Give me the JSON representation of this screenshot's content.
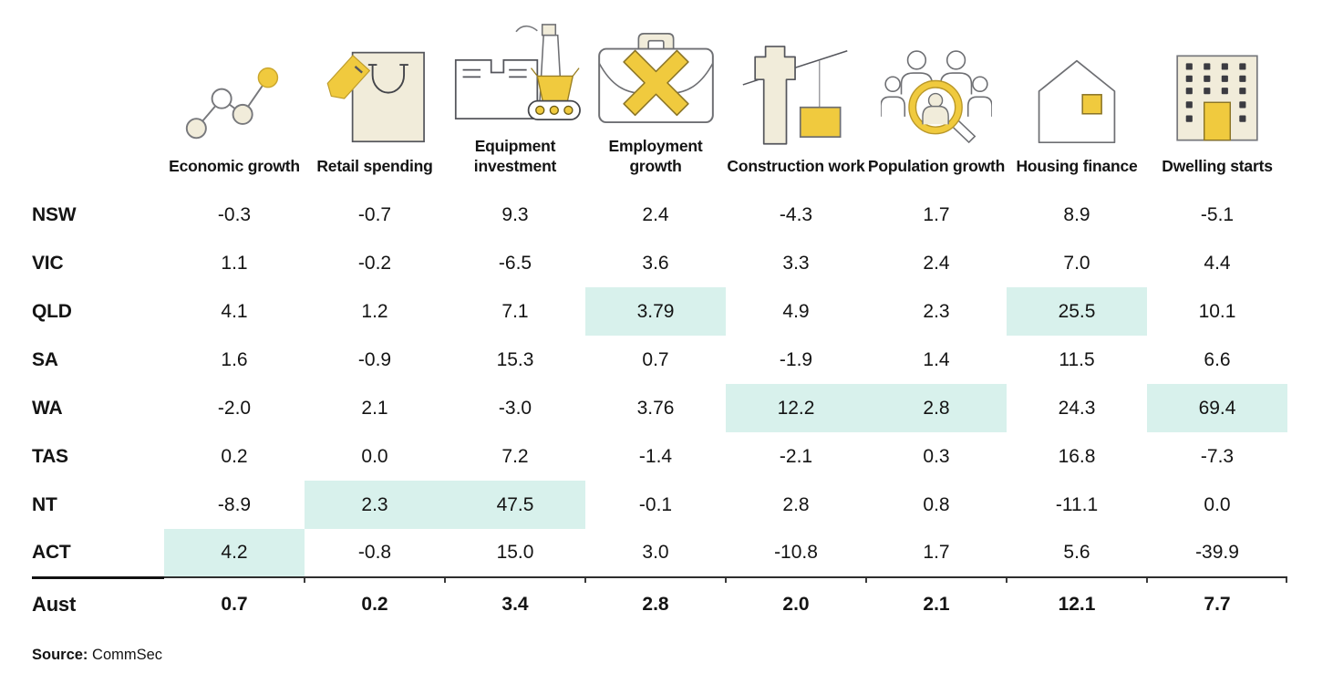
{
  "columns": [
    {
      "label": "Economic growth",
      "icon": "line-chart-growth-icon"
    },
    {
      "label": "Retail spending",
      "icon": "shopping-bag-tag-icon"
    },
    {
      "label": "Equipment investment",
      "icon": "factory-conveyor-icon"
    },
    {
      "label": "Employment growth",
      "icon": "briefcase-x-icon"
    },
    {
      "label": "Construction work",
      "icon": "crane-icon"
    },
    {
      "label": "Population growth",
      "icon": "people-magnifier-icon"
    },
    {
      "label": "Housing finance",
      "icon": "house-window-icon"
    },
    {
      "label": "Dwelling starts",
      "icon": "apartment-building-icon"
    }
  ],
  "rows": [
    {
      "label": "NSW",
      "values": [
        "-0.3",
        "-0.7",
        "9.3",
        "2.4",
        "-4.3",
        "1.7",
        "8.9",
        "-5.1"
      ],
      "highlighted": []
    },
    {
      "label": "VIC",
      "values": [
        "1.1",
        "-0.2",
        "-6.5",
        "3.6",
        "3.3",
        "2.4",
        "7.0",
        "4.4"
      ],
      "highlighted": []
    },
    {
      "label": "QLD",
      "values": [
        "4.1",
        "1.2",
        "7.1",
        "3.79",
        "4.9",
        "2.3",
        "25.5",
        "10.1"
      ],
      "highlighted": [
        3,
        6
      ]
    },
    {
      "label": "SA",
      "values": [
        "1.6",
        "-0.9",
        "15.3",
        "0.7",
        "-1.9",
        "1.4",
        "11.5",
        "6.6"
      ],
      "highlighted": []
    },
    {
      "label": "WA",
      "values": [
        "-2.0",
        "2.1",
        "-3.0",
        "3.76",
        "12.2",
        "2.8",
        "24.3",
        "69.4"
      ],
      "highlighted": [
        4,
        5,
        7
      ]
    },
    {
      "label": "TAS",
      "values": [
        "0.2",
        "0.0",
        "7.2",
        "-1.4",
        "-2.1",
        "0.3",
        "16.8",
        "-7.3"
      ],
      "highlighted": []
    },
    {
      "label": "NT",
      "values": [
        "-8.9",
        "2.3",
        "47.5",
        "-0.1",
        "2.8",
        "0.8",
        "-11.1",
        "0.0"
      ],
      "highlighted": [
        1,
        2
      ]
    },
    {
      "label": "ACT",
      "values": [
        "4.2",
        "-0.8",
        "15.0",
        "3.0",
        "-10.8",
        "1.7",
        "5.6",
        "-39.9"
      ],
      "highlighted": [
        0
      ]
    }
  ],
  "total_row": {
    "label": "Aust",
    "values": [
      "0.7",
      "0.2",
      "3.4",
      "2.8",
      "2.0",
      "2.1",
      "12.1",
      "7.7"
    ]
  },
  "source": {
    "label": "Source:",
    "value": " CommSec"
  },
  "colors": {
    "highlight_mint": "#d8f1ec",
    "accent_yellow": "#f0ca3e",
    "icon_cream": "#f1ecda",
    "icon_outline_gray": "#6e6f73",
    "icon_outline_dark": "#55565c",
    "text": "#141414"
  },
  "chart_data": {
    "type": "table",
    "title": "State economic indicators (% )",
    "columns": [
      "Economic growth",
      "Retail spending",
      "Equipment investment",
      "Employment growth",
      "Construction work",
      "Population growth",
      "Housing finance",
      "Dwelling starts"
    ],
    "row_labels": [
      "NSW",
      "VIC",
      "QLD",
      "SA",
      "WA",
      "TAS",
      "NT",
      "ACT"
    ],
    "values": [
      [
        -0.3,
        -0.7,
        9.3,
        2.4,
        -4.3,
        1.7,
        8.9,
        -5.1
      ],
      [
        1.1,
        -0.2,
        -6.5,
        3.6,
        3.3,
        2.4,
        7.0,
        4.4
      ],
      [
        4.1,
        1.2,
        7.1,
        3.79,
        4.9,
        2.3,
        25.5,
        10.1
      ],
      [
        1.6,
        -0.9,
        15.3,
        0.7,
        -1.9,
        1.4,
        11.5,
        6.6
      ],
      [
        -2.0,
        2.1,
        -3.0,
        3.76,
        12.2,
        2.8,
        24.3,
        69.4
      ],
      [
        0.2,
        0.0,
        7.2,
        -1.4,
        -2.1,
        0.3,
        16.8,
        -7.3
      ],
      [
        -8.9,
        2.3,
        47.5,
        -0.1,
        2.8,
        0.8,
        -11.1,
        0.0
      ],
      [
        4.2,
        -0.8,
        15.0,
        3.0,
        -10.8,
        1.7,
        5.6,
        -39.9
      ]
    ],
    "total": {
      "label": "Aust",
      "values": [
        0.7,
        0.2,
        3.4,
        2.8,
        2.0,
        2.1,
        12.1,
        7.7
      ]
    },
    "highlighted_cells": [
      {
        "row": "QLD",
        "column": "Employment growth",
        "value": 3.79
      },
      {
        "row": "QLD",
        "column": "Housing finance",
        "value": 25.5
      },
      {
        "row": "WA",
        "column": "Construction work",
        "value": 12.2
      },
      {
        "row": "WA",
        "column": "Population growth",
        "value": 2.8
      },
      {
        "row": "WA",
        "column": "Dwelling starts",
        "value": 69.4
      },
      {
        "row": "NT",
        "column": "Retail spending",
        "value": 2.3
      },
      {
        "row": "NT",
        "column": "Equipment investment",
        "value": 47.5
      },
      {
        "row": "ACT",
        "column": "Economic growth",
        "value": 4.2
      }
    ],
    "source": "Source: CommSec",
    "legend_position": "none",
    "grid": false
  }
}
